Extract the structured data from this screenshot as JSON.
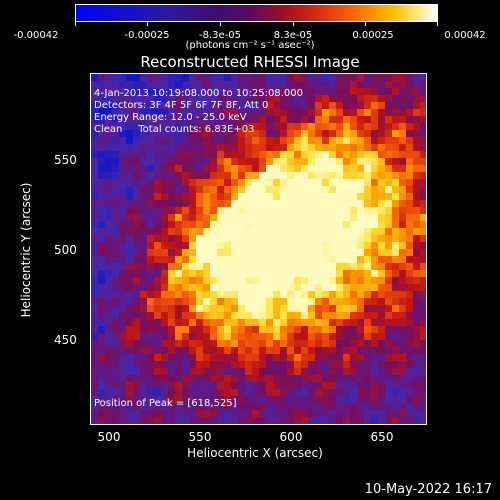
{
  "colorbar": {
    "ticks": [
      "-0.00042",
      "-0.00025",
      "-8.3e-05",
      "8.3e-05",
      "0.00025",
      "0.00042"
    ],
    "unit": "(photons cm⁻² s⁻¹ asec⁻²)"
  },
  "chart_data": {
    "type": "heatmap",
    "title": "Reconstructed RHESSI Image",
    "xlabel": "Heliocentric X (arcsec)",
    "ylabel": "Heliocentric Y (arcsec)",
    "xlim": [
      480,
      673
    ],
    "ylim": [
      399,
      600
    ],
    "x_ticks": [
      "500",
      "550",
      "600",
      "650"
    ],
    "y_ticks": [
      "550",
      "500",
      "450"
    ],
    "colormap": "blue-purple-red-yellow-white",
    "peak": [
      618,
      525
    ],
    "annotations": [
      "4-Jan-2013 10:19:08.000 to 10:25:08.000",
      "Detectors: 3F 4F 5F 6F 7F 8F, Att 0",
      "Energy Range: 12.0 - 25.0 keV",
      "Clean     Total counts: 6.83E+03",
      "Position of Peak = [618,525]"
    ]
  },
  "footer": "10-May-2022 16:17"
}
